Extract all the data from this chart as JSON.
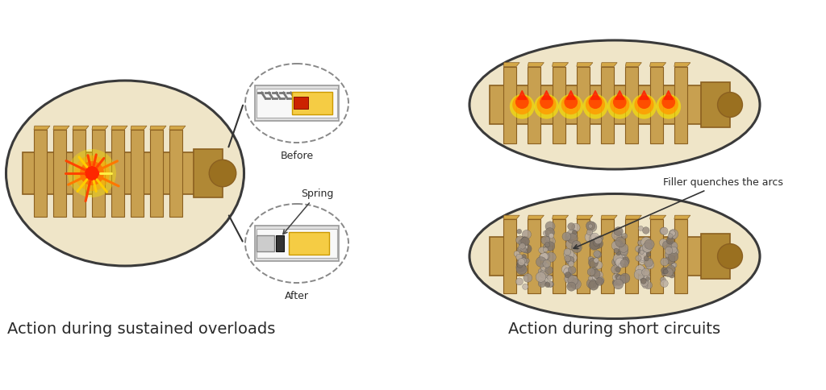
{
  "title_left": "Action during sustained overloads",
  "title_right": "Action during short circuits",
  "label_before": "Before",
  "label_after": "After",
  "label_spring": "Spring",
  "label_filler": "Filler quenches the arcs",
  "bg_color": "#ffffff",
  "text_color": "#2a2a2a",
  "fuse_color": "#C8A050",
  "fuse_dark": "#8B6020",
  "fuse_shadow": "#A07828",
  "cap_color": "#B08835",
  "font_size_title": 14,
  "font_size_label": 8,
  "font_size_annot": 8,
  "oval_fill": "#EFE5C8",
  "oval_edge": "#3a3a3a",
  "dashed_fill": "#ffffff",
  "dashed_edge": "#888888"
}
